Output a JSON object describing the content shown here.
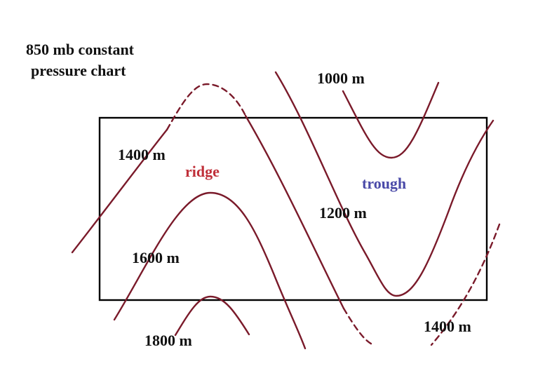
{
  "title_line1": "850 mb constant",
  "title_line2": "pressure chart",
  "labels": {
    "c1000": "1000 m",
    "c1200": "1200 m",
    "c1400_left": "1400 m",
    "c1400_right": "1400 m",
    "c1600": "1600 m",
    "c1800": "1800 m",
    "ridge": "ridge",
    "trough": "trough"
  },
  "colors": {
    "contour": "#7a1a2a",
    "ridge": "#c0303a",
    "trough": "#4a4aa8",
    "frame": "#000000"
  }
}
